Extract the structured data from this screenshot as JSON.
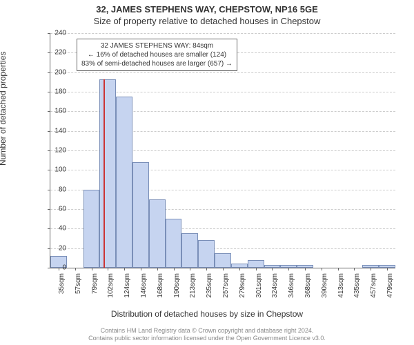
{
  "header": {
    "address": "32, JAMES STEPHENS WAY, CHEPSTOW, NP16 5GE",
    "subtitle": "Size of property relative to detached houses in Chepstow"
  },
  "annotation": {
    "line1": "32 JAMES STEPHENS WAY: 84sqm",
    "line2": "← 16% of detached houses are smaller (124)",
    "line3": "83% of semi-detached houses are larger (657) →"
  },
  "axes": {
    "y_label": "Number of detached properties",
    "x_label": "Distribution of detached houses by size in Chepstow",
    "y_ticks": [
      0,
      20,
      40,
      60,
      80,
      100,
      120,
      140,
      160,
      180,
      200,
      220,
      240
    ],
    "x_ticks": [
      "35sqm",
      "57sqm",
      "79sqm",
      "102sqm",
      "124sqm",
      "146sqm",
      "168sqm",
      "190sqm",
      "213sqm",
      "235sqm",
      "257sqm",
      "279sqm",
      "301sqm",
      "324sqm",
      "346sqm",
      "368sqm",
      "390sqm",
      "413sqm",
      "435sqm",
      "457sqm",
      "479sqm"
    ],
    "ylim": [
      0,
      240
    ]
  },
  "chart": {
    "type": "histogram",
    "bar_color": "#c6d4f0",
    "bar_border_color": "#7a8fb8",
    "marker_color": "#cc3333",
    "grid_color": "#cccccc",
    "background_color": "#ffffff",
    "values": [
      12,
      0,
      80,
      193,
      175,
      108,
      70,
      50,
      35,
      28,
      15,
      4,
      8,
      3,
      3,
      3,
      0,
      0,
      0,
      3,
      3
    ],
    "marker_bin_index": 3,
    "marker_position_in_bin": 0.22
  },
  "footer": {
    "line1": "Contains HM Land Registry data © Crown copyright and database right 2024.",
    "line2": "Contains public sector information licensed under the Open Government Licence v3.0."
  },
  "typography": {
    "title_fontsize": 13,
    "axis_label_fontsize": 12,
    "tick_fontsize": 10,
    "annotation_fontsize": 10,
    "footer_fontsize": 9
  }
}
